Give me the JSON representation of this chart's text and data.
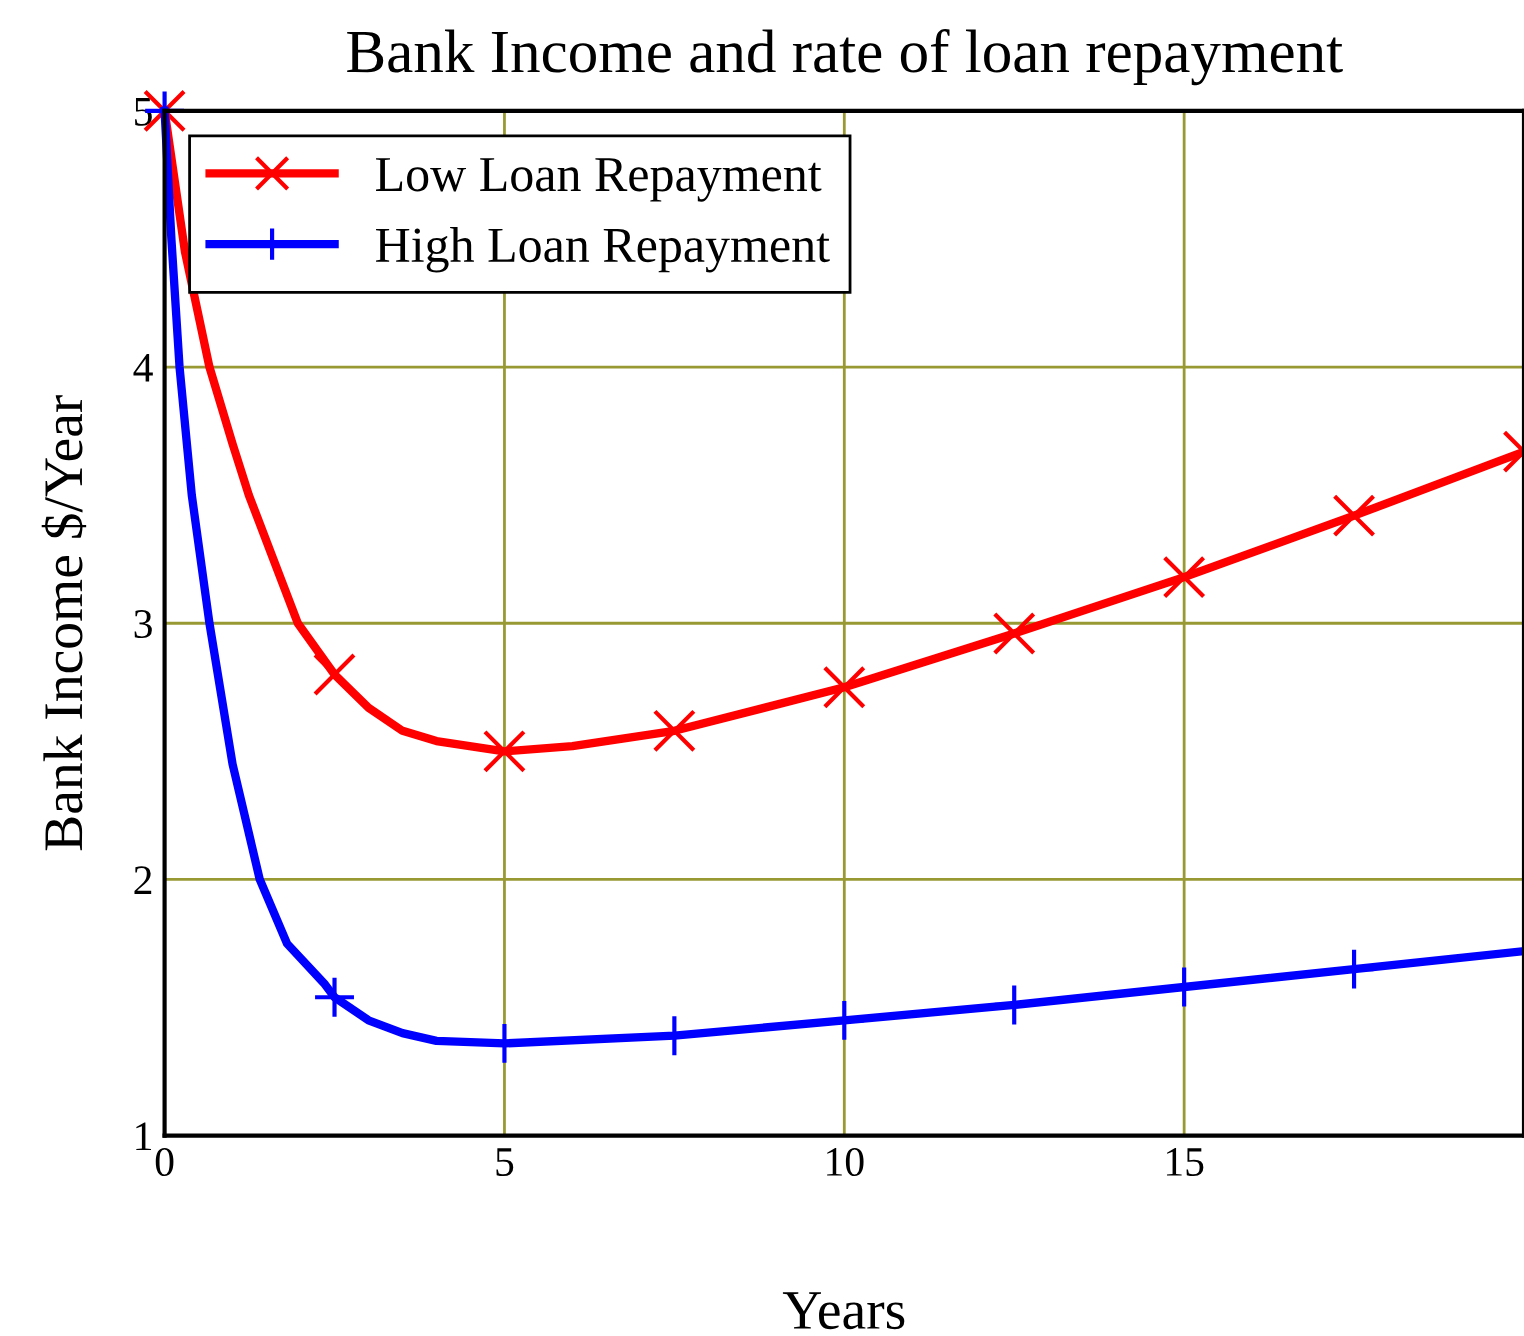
{
  "chart_data": {
    "type": "line",
    "title": "Bank Income and rate of loan repayment",
    "xlabel": "Years",
    "ylabel": "Bank Income $/Year",
    "series": [
      {
        "color": "#ff0000",
        "x": [
          0,
          0.3,
          0.66,
          1.0,
          1.24,
          1.6,
          1.96,
          2.5,
          3.0,
          3.5,
          4.0,
          5.0,
          6.0,
          7.5,
          10.0,
          12.5,
          15.0,
          17.5,
          20.0
        ],
        "values": [
          5.0,
          4.45,
          4.0,
          3.7,
          3.5,
          3.25,
          3.0,
          2.8,
          2.67,
          2.58,
          2.54,
          2.5,
          2.52,
          2.58,
          2.75,
          2.96,
          3.18,
          3.42,
          3.67
        ]
      },
      {
        "type": "scatter",
        "name": "Low Loan Repayment",
        "color": "#ff0000",
        "marker": "cross",
        "x": [
          0,
          2.5,
          5.0,
          7.5,
          10.0,
          12.5,
          15.0,
          17.5,
          20.0
        ],
        "values": [
          5.0,
          2.8,
          2.5,
          2.58,
          2.75,
          2.96,
          3.18,
          3.42,
          3.67
        ]
      },
      {
        "color": "#0000ff",
        "x": [
          0,
          0.1,
          0.22,
          0.4,
          0.66,
          1.0,
          1.4,
          1.8,
          2.36,
          2.5,
          3.0,
          3.5,
          4.0,
          5.0,
          7.5,
          10.0,
          12.5,
          15.0,
          17.5,
          20.0
        ],
        "values": [
          5.0,
          4.5,
          4.0,
          3.5,
          3.0,
          2.45,
          2.0,
          1.75,
          1.59,
          1.54,
          1.45,
          1.4,
          1.37,
          1.36,
          1.39,
          1.45,
          1.51,
          1.58,
          1.65,
          1.72
        ]
      },
      {
        "type": "scatter",
        "name": "High Loan Repayment",
        "color": "#0000ff",
        "marker": "cross",
        "x": [
          0,
          2.5,
          5.0,
          7.5,
          10.0,
          12.5,
          15.0,
          17.5
        ],
        "values": [
          5.0,
          1.54,
          1.36,
          1.39,
          1.45,
          1.51,
          1.58,
          1.65
        ]
      }
    ],
    "xlim": [
      0,
      20
    ],
    "xticks": [
      0,
      5,
      10,
      15
    ],
    "ylim": [
      1,
      5
    ],
    "yticks": [
      1,
      2,
      3,
      4,
      5
    ],
    "grid": true,
    "legend": "top left"
  }
}
